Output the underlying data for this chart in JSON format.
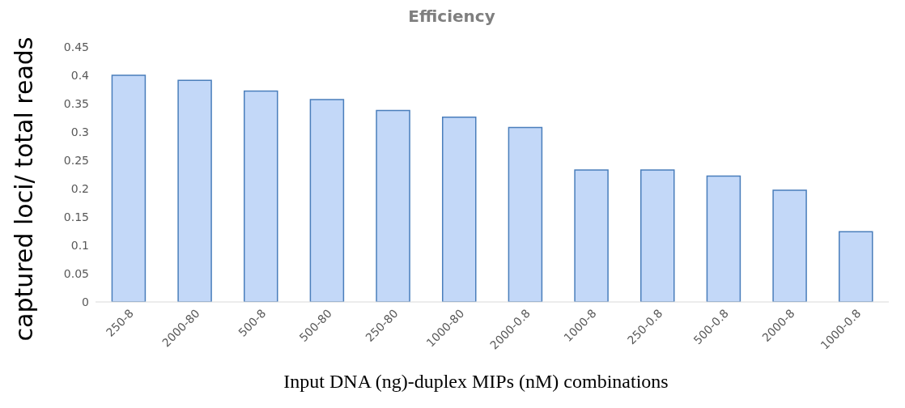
{
  "chart_data": {
    "type": "bar",
    "title": "Efficiency",
    "xlabel": "Input DNA (ng)-duplex MIPs (nM) combinations",
    "ylabel": "captured loci/ total reads",
    "categories": [
      "250-8",
      "2000-80",
      "500-8",
      "500-80",
      "250-80",
      "1000-80",
      "2000-0.8",
      "1000-8",
      "250-0.8",
      "500-0.8",
      "2000-8",
      "1000-0.8"
    ],
    "values": [
      0.4,
      0.391,
      0.372,
      0.357,
      0.338,
      0.326,
      0.308,
      0.233,
      0.233,
      0.222,
      0.197,
      0.124
    ],
    "color": "#c3d8f8",
    "ylim": [
      0,
      0.45
    ],
    "yticks": [
      0,
      0.05,
      0.1,
      0.15,
      0.2,
      0.25,
      0.3,
      0.35,
      0.4,
      0.45
    ],
    "grid": false,
    "legend": false
  }
}
